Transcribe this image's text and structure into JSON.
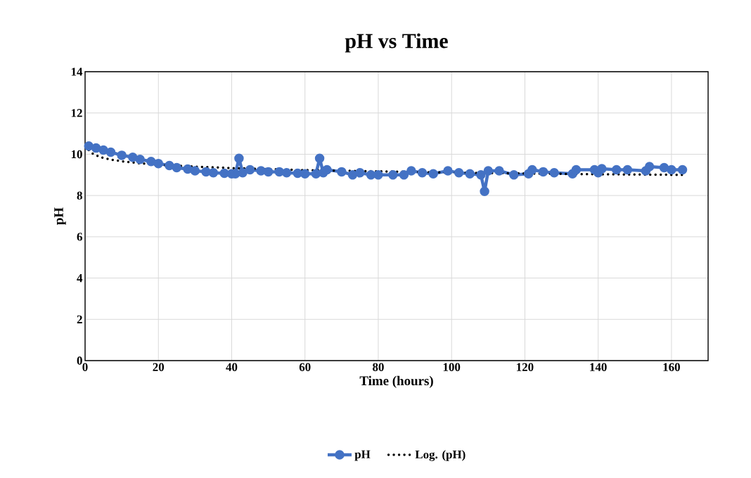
{
  "chart_data": {
    "type": "line",
    "title": "pH vs Time",
    "xlabel": "Time (hours)",
    "ylabel": "pH",
    "xlim": [
      0,
      170
    ],
    "ylim": [
      0,
      14
    ],
    "xticks": [
      0,
      20,
      40,
      60,
      80,
      100,
      120,
      140,
      160
    ],
    "yticks": [
      0,
      2,
      4,
      6,
      8,
      10,
      12,
      14
    ],
    "grid": true,
    "legend": "bottom",
    "series": [
      {
        "name": "pH",
        "color": "#4472c4",
        "marker": "circle",
        "line_style": "solid",
        "x": [
          1,
          3,
          5,
          7,
          10,
          13,
          15,
          18,
          20,
          23,
          25,
          28,
          30,
          33,
          35,
          38,
          40,
          41,
          42,
          43,
          45,
          48,
          50,
          53,
          55,
          58,
          60,
          63,
          64,
          65,
          66,
          70,
          73,
          75,
          78,
          80,
          84,
          87,
          89,
          92,
          95,
          99,
          102,
          105,
          108,
          109,
          110,
          113,
          117,
          121,
          122,
          125,
          128,
          133,
          134,
          139,
          140,
          141,
          145,
          148,
          153,
          154,
          158,
          160,
          163
        ],
        "values": [
          10.4,
          10.3,
          10.2,
          10.1,
          9.95,
          9.85,
          9.75,
          9.65,
          9.55,
          9.45,
          9.35,
          9.28,
          9.2,
          9.15,
          9.1,
          9.08,
          9.05,
          9.05,
          9.8,
          9.1,
          9.25,
          9.2,
          9.15,
          9.15,
          9.1,
          9.08,
          9.05,
          9.05,
          9.8,
          9.1,
          9.25,
          9.15,
          9.0,
          9.1,
          9.0,
          9.0,
          9.0,
          9.0,
          9.2,
          9.1,
          9.05,
          9.2,
          9.1,
          9.05,
          9.0,
          8.2,
          9.2,
          9.2,
          9.0,
          9.05,
          9.25,
          9.15,
          9.1,
          9.05,
          9.25,
          9.25,
          9.1,
          9.3,
          9.25,
          9.25,
          9.2,
          9.4,
          9.35,
          9.25,
          9.25
        ]
      },
      {
        "name": "Log. (pH)",
        "color": "#000000",
        "marker": "none",
        "line_style": "dotted",
        "x": [
          1,
          2,
          4,
          7,
          10,
          15,
          20,
          30,
          40,
          60,
          80,
          100,
          120,
          140,
          163
        ],
        "values": [
          10.2,
          10.04,
          9.87,
          9.74,
          9.66,
          9.56,
          9.49,
          9.4,
          9.33,
          9.23,
          9.17,
          9.11,
          9.07,
          9.03,
          9.0
        ]
      }
    ]
  }
}
